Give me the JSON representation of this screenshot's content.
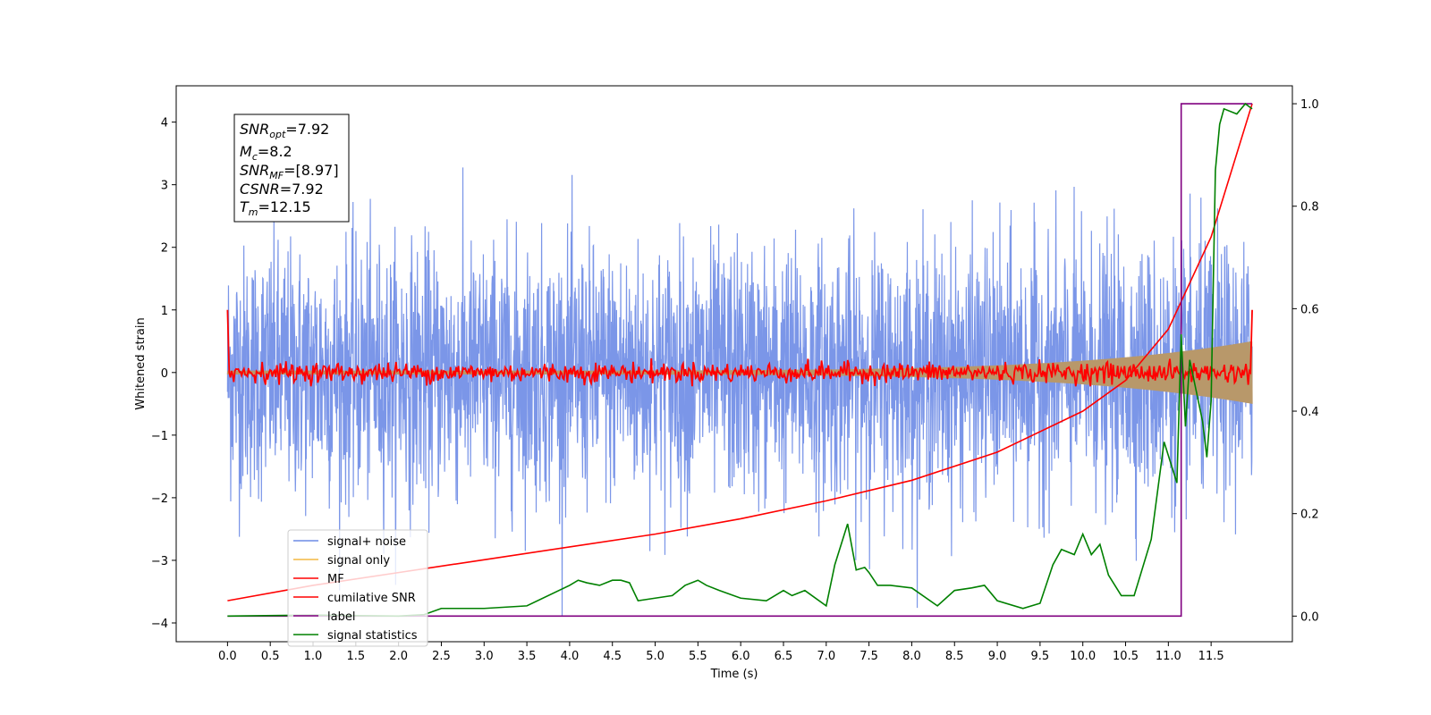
{
  "chart_data": {
    "type": "line",
    "xlabel": "Time (s)",
    "ylabel": "Whitened strain",
    "xlim": [
      -0.6,
      12.45
    ],
    "ylim": [
      -4.3,
      4.58
    ],
    "y2lim": [
      -0.05,
      1.035
    ],
    "x_ticks": [
      "0.0",
      "0.5",
      "1.0",
      "1.5",
      "2.0",
      "2.5",
      "3.0",
      "3.5",
      "4.0",
      "4.5",
      "5.0",
      "5.5",
      "6.0",
      "6.5",
      "7.0",
      "7.5",
      "8.0",
      "8.5",
      "9.0",
      "9.5",
      "10.0",
      "10.5",
      "11.0",
      "11.5"
    ],
    "y_ticks": [
      "−4",
      "−3",
      "−2",
      "−1",
      "0",
      "1",
      "2",
      "3",
      "4"
    ],
    "y2_ticks": [
      "0.0",
      "0.2",
      "0.4",
      "0.6",
      "0.8",
      "1.0"
    ],
    "annotation": {
      "lines": [
        {
          "base": "SNR",
          "sub": "opt",
          "value": "=7.92"
        },
        {
          "base": "M",
          "sub": "c",
          "value": "=8.2"
        },
        {
          "base": "SNR",
          "sub": "MF",
          "value": "=[8.97]"
        },
        {
          "base": "CSNR",
          "sub": "",
          "value": "=7.92"
        },
        {
          "base": "T",
          "sub": "m",
          "value": "=12.15"
        }
      ]
    },
    "legend": {
      "position": "lower-left",
      "entries": [
        "signal+ noise",
        "signal only",
        "MF",
        "cumilative SNR",
        "label",
        "signal statistics"
      ]
    },
    "series": [
      {
        "name": "signal+ noise",
        "color": "#6d8be6",
        "axis": "left",
        "kind": "noise",
        "x_range": [
          0,
          11.98
        ],
        "amplitude_std": 1.0
      },
      {
        "name": "signal only",
        "color": "#f4b942",
        "axis": "left",
        "kind": "chirp",
        "x_range": [
          0,
          11.98
        ],
        "envelope_start": 0.03,
        "envelope_end": 0.5
      },
      {
        "name": "MF",
        "color": "#ff0000",
        "axis": "left",
        "kind": "mf",
        "x_range": [
          0,
          11.98
        ],
        "noise_std": 0.08,
        "end_points": [
          [
            0.0,
            1.0
          ],
          [
            0.02,
            0.0
          ],
          [
            11.96,
            0.0
          ],
          [
            11.98,
            1.0
          ]
        ]
      },
      {
        "name": "cumilative SNR",
        "color": "#ff0000",
        "axis": "right",
        "x": [
          0,
          1,
          2,
          3,
          4,
          5,
          6,
          7,
          8,
          9,
          10,
          10.5,
          11,
          11.5,
          11.98
        ],
        "y": [
          0.03,
          0.06,
          0.085,
          0.11,
          0.135,
          0.16,
          0.19,
          0.225,
          0.265,
          0.32,
          0.4,
          0.46,
          0.56,
          0.74,
          1.0
        ]
      },
      {
        "name": "label",
        "color": "#800080",
        "axis": "right",
        "x": [
          0,
          11.15,
          11.15,
          11.98
        ],
        "y": [
          0.0,
          0.0,
          1.0,
          1.0
        ]
      },
      {
        "name": "signal statistics",
        "color": "#008000",
        "axis": "right",
        "x": [
          0,
          1.0,
          2.0,
          2.3,
          2.5,
          3.0,
          3.5,
          4.0,
          4.1,
          4.2,
          4.35,
          4.5,
          4.6,
          4.7,
          4.8,
          5.0,
          5.2,
          5.35,
          5.5,
          5.6,
          5.75,
          6.0,
          6.3,
          6.5,
          6.6,
          6.75,
          7.0,
          7.1,
          7.25,
          7.35,
          7.45,
          7.5,
          7.6,
          7.75,
          8.0,
          8.3,
          8.5,
          8.7,
          8.85,
          9.0,
          9.3,
          9.5,
          9.65,
          9.75,
          9.9,
          10.0,
          10.1,
          10.2,
          10.3,
          10.45,
          10.6,
          10.8,
          10.95,
          11.1,
          11.15,
          11.2,
          11.25,
          11.3,
          11.4,
          11.45,
          11.5,
          11.55,
          11.6,
          11.65,
          11.8,
          11.9,
          11.98
        ],
        "y": [
          0.0,
          0.002,
          0.0,
          0.003,
          0.015,
          0.015,
          0.02,
          0.06,
          0.07,
          0.065,
          0.06,
          0.07,
          0.07,
          0.065,
          0.03,
          0.035,
          0.04,
          0.06,
          0.07,
          0.06,
          0.05,
          0.035,
          0.03,
          0.05,
          0.04,
          0.05,
          0.02,
          0.1,
          0.18,
          0.09,
          0.095,
          0.085,
          0.06,
          0.06,
          0.055,
          0.02,
          0.05,
          0.055,
          0.06,
          0.03,
          0.015,
          0.025,
          0.1,
          0.13,
          0.12,
          0.16,
          0.12,
          0.14,
          0.08,
          0.04,
          0.04,
          0.15,
          0.34,
          0.26,
          0.55,
          0.37,
          0.5,
          0.46,
          0.38,
          0.31,
          0.42,
          0.87,
          0.96,
          0.99,
          0.98,
          1.0,
          0.99
        ]
      }
    ]
  }
}
